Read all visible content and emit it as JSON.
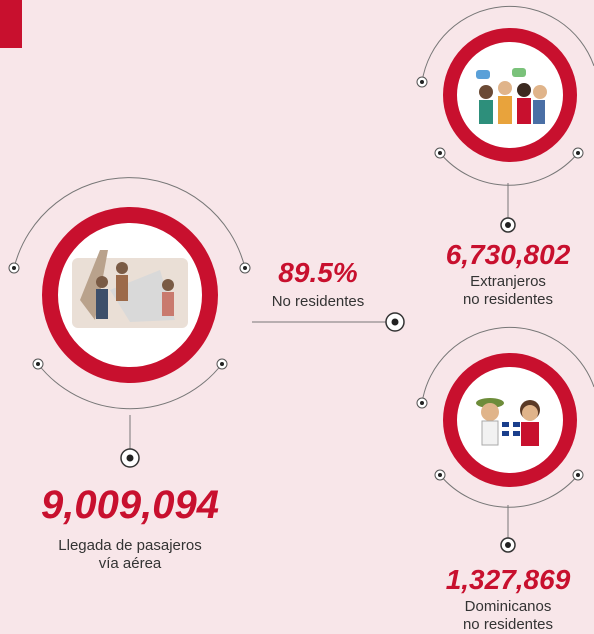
{
  "total": {
    "value": "9,009,094",
    "label": [
      "Llegada de pasajeros",
      "vía aérea"
    ]
  },
  "share": {
    "value": "89.5%",
    "label": "No residentes"
  },
  "groups": [
    {
      "value": "6,730,802",
      "label": [
        "Extranjeros",
        "no residentes"
      ]
    },
    {
      "value": "1,327,869",
      "label": [
        "Dominicanos",
        "no residentes"
      ]
    }
  ]
}
